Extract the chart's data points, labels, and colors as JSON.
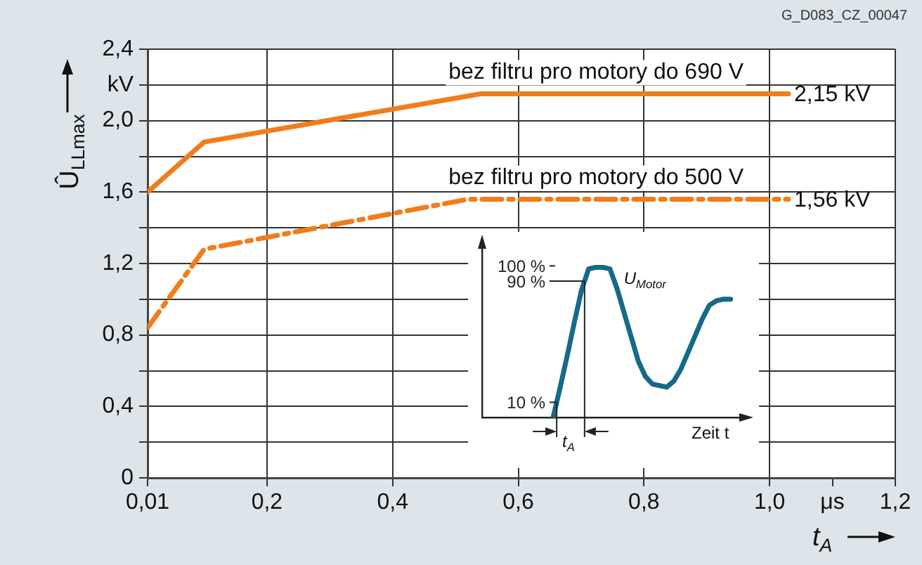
{
  "chart_data": [
    {
      "type": "line",
      "xlabel": "t$_{A}$",
      "ylabel": "Û$_{LLmax}$",
      "xlim": [
        0.01,
        1.2
      ],
      "xticks": [
        {
          "value": 0.01,
          "label": "0,01"
        },
        {
          "value": 0.2,
          "label": "0,2"
        },
        {
          "value": 0.4,
          "label": "0,4"
        },
        {
          "value": 0.6,
          "label": "0,6"
        },
        {
          "value": 0.8,
          "label": "0,8"
        },
        {
          "value": 1.0,
          "label": "1,0"
        },
        {
          "value": 1.1,
          "label": "μs"
        },
        {
          "value": 1.2,
          "label": "1,2"
        }
      ],
      "ylim": [
        0,
        2.4
      ],
      "yticks": [
        0,
        {
          "value": 0.2,
          "label": null
        },
        {
          "value": 0.4,
          "label": "0,4"
        },
        {
          "value": 0.6,
          "label": null
        },
        {
          "value": 0.8,
          "label": "0,8"
        },
        {
          "value": 1.0,
          "label": null
        },
        {
          "value": 1.2,
          "label": "1,2"
        },
        {
          "value": 1.4,
          "label": null
        },
        {
          "value": 1.6,
          "label": "1,6"
        },
        {
          "value": 1.8,
          "label": null
        },
        {
          "value": 2.0,
          "label": "2,0"
        },
        {
          "value": 2.2,
          "label": "kV"
        },
        {
          "value": 2.4,
          "label": "2,4"
        }
      ],
      "grid": true,
      "legend": false,
      "marker": "none",
      "series": [
        {
          "name": "bez filtru pro motory do 690 V",
          "color": "#f07d1a",
          "line_style": "solid",
          "x": [
            0.01,
            0.1,
            0.54,
            1.03
          ],
          "values": [
            1.6,
            1.88,
            2.15,
            2.15
          ]
        },
        {
          "name": "bez filtru pro motory do 500 V",
          "color": "#f07d1a",
          "line_style": "dashed",
          "x": [
            0.01,
            0.1,
            0.52,
            1.03
          ],
          "values": [
            0.84,
            1.28,
            1.56,
            1.56
          ]
        }
      ],
      "annotations": [
        "G_D083_CZ_00047",
        {
          "text": "2,15 kV",
          "x": 1.03,
          "y": 2.15
        },
        {
          "text": "1,56 kV",
          "x": 1.03,
          "y": 1.56
        }
      ]
    },
    {
      "type": "line",
      "xlabel": "Zeit t",
      "marker": "none",
      "grid": false,
      "legend": false,
      "categories": [
        null,
        null,
        null,
        null,
        null,
        null,
        null,
        null,
        null,
        null,
        null,
        null,
        null,
        null,
        null,
        null,
        null,
        null,
        null,
        null,
        null,
        null,
        null,
        null,
        null,
        null,
        null,
        null,
        null,
        null,
        null,
        null,
        null,
        null,
        null,
        null,
        null,
        null
      ],
      "ylim": [
        0,
        115
      ],
      "yticks": [
        {
          "value": 10,
          "label": "10 %"
        },
        {
          "value": 90,
          "label": "90 %"
        },
        {
          "value": 100,
          "label": "100 %"
        }
      ],
      "series": [
        {
          "color": "#17698a",
          "values": [
            null,
            null,
            null,
            null,
            null,
            null,
            null,
            null,
            null,
            null,
            0,
            20,
            41,
            63,
            84,
            98,
            99,
            99,
            98,
            85,
            69,
            53,
            37,
            27,
            22,
            21,
            20,
            24,
            32,
            43,
            54,
            65,
            74,
            77,
            78,
            78,
            null,
            null
          ]
        }
      ],
      "annotations": [
        "U$_{Motor}$",
        "t$_{A}$"
      ]
    }
  ]
}
